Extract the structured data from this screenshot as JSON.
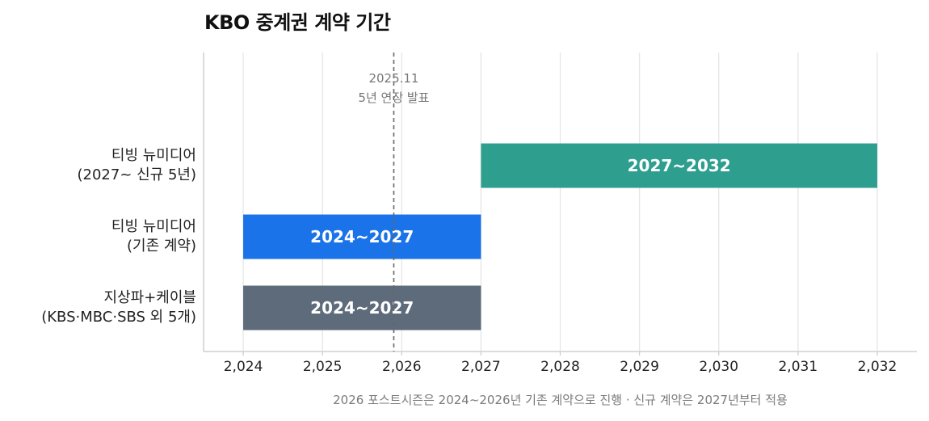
{
  "chart_data": {
    "type": "bar",
    "orientation": "horizontal",
    "title": "KBO 중계권 계약 기간",
    "xlim": [
      2023.5,
      2032.5
    ],
    "xticks": [
      "2,024",
      "2,025",
      "2,026",
      "2,027",
      "2,028",
      "2,029",
      "2,030",
      "2,031",
      "2,032"
    ],
    "tick_values": [
      2024,
      2025,
      2026,
      2027,
      2028,
      2029,
      2030,
      2031,
      2032
    ],
    "grid": "vertical",
    "categories": [
      {
        "line1": "티빙 뉴미디어",
        "line2": "(2027~ 신규 5년)"
      },
      {
        "line1": "티빙 뉴미디어",
        "line2": "(기존 계약)"
      },
      {
        "line1": "지상파+케이블",
        "line2": "(KBS·MBC·SBS 외 5개)"
      }
    ],
    "bars": [
      {
        "start": 2027,
        "end": 2032,
        "label": "2027~2032",
        "color": "#2e9e8f"
      },
      {
        "start": 2024,
        "end": 2027,
        "label": "2024~2027",
        "color": "#1a73e8"
      },
      {
        "start": 2024,
        "end": 2027,
        "label": "2024~2027",
        "color": "#5d6b7b"
      }
    ],
    "reference_line": {
      "x": 2025.9,
      "line1": "2025.11",
      "line2": "5년 연장 발표",
      "color": "#666666"
    }
  },
  "footnote": "2026 포스트시즌은 2024~2026년 기존 계약으로 진행 · 신규 계약은 2027년부터 적용"
}
